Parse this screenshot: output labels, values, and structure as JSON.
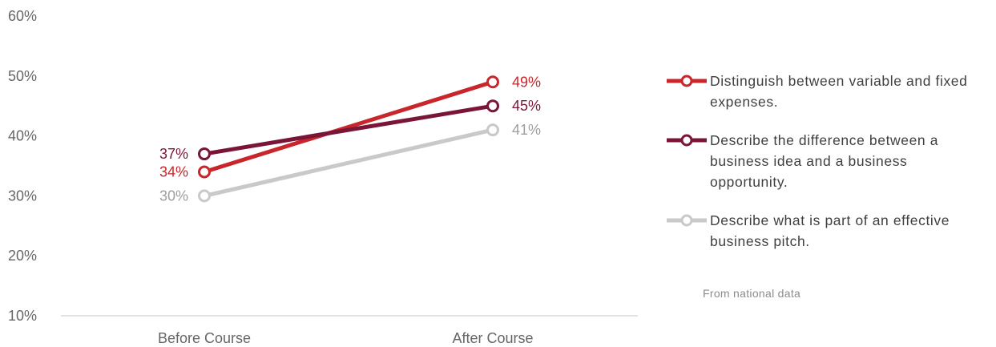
{
  "chart_data": {
    "type": "line",
    "categories": [
      "Before Course",
      "After Course"
    ],
    "series": [
      {
        "name": "Distinguish between variable and fixed expenses.",
        "values": [
          34,
          49
        ],
        "labels": [
          "34%",
          "49%"
        ],
        "color": "#C8262B"
      },
      {
        "name": "Describe the difference between a business idea and a business opportunity.",
        "values": [
          37,
          45
        ],
        "labels": [
          "37%",
          "45%"
        ],
        "color": "#7A1538"
      },
      {
        "name": "Describe what is part of an effective business pitch.",
        "values": [
          30,
          41
        ],
        "labels": [
          "30%",
          "41%"
        ],
        "color": "#C9C9C9"
      }
    ],
    "y_ticks": [
      10,
      20,
      30,
      40,
      50,
      60
    ],
    "y_tick_labels": [
      "10%",
      "20%",
      "30%",
      "40%",
      "50%",
      "60%"
    ],
    "ylim": [
      10,
      60
    ],
    "grid": false,
    "legend_position": "right"
  },
  "colors": {
    "axis_line": "#D9D9D9",
    "tick_text": "#666666",
    "label_before": {
      "series_0": "#C8262B",
      "series_1": "#7A1538",
      "series_2": "#9E9E9E"
    },
    "label_after": {
      "series_0": "#C8262B",
      "series_1": "#7A1538",
      "series_2": "#9E9E9E"
    }
  },
  "note": "From national data"
}
